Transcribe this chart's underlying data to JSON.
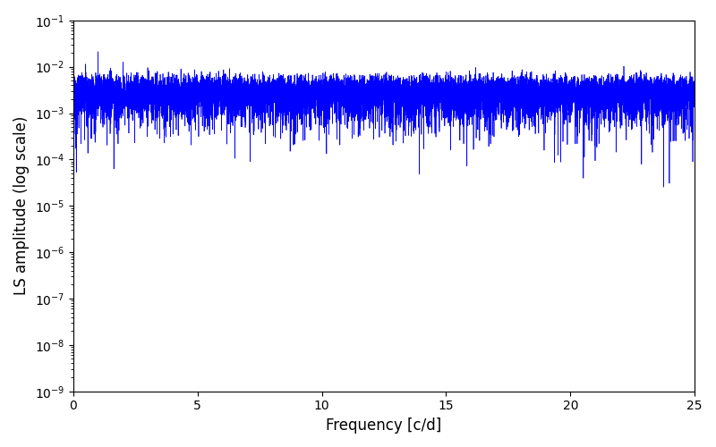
{
  "xlabel": "Frequency [c/d]",
  "ylabel": "LS amplitude (log scale)",
  "line_color": "blue",
  "xlim": [
    0,
    25
  ],
  "ylim": [
    1e-09,
    0.1
  ],
  "figsize": [
    8.0,
    5.0
  ],
  "dpi": 100,
  "background_color": "#ffffff",
  "freq_min": 0.001,
  "freq_max": 25.0,
  "n_freq": 10000,
  "n_obs": 300,
  "seed": 42,
  "xlabel_fontsize": 12,
  "ylabel_fontsize": 12,
  "linewidth": 0.5
}
